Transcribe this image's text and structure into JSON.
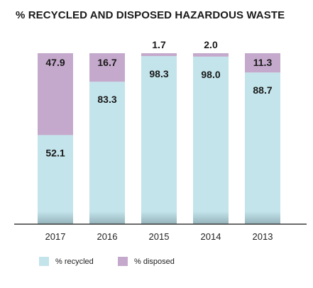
{
  "title": "% RECYCLED AND DISPOSED HAZARDOUS WASTE",
  "chart_data": {
    "type": "bar",
    "stacked": true,
    "title": "% RECYCLED AND DISPOSED HAZARDOUS WASTE",
    "categories": [
      "2017",
      "2016",
      "2015",
      "2014",
      "2013"
    ],
    "series": [
      {
        "name": "% recycled",
        "values": [
          52.1,
          83.3,
          98.3,
          98.0,
          88.7
        ],
        "color": "#c3e4eb"
      },
      {
        "name": "% disposed",
        "values": [
          47.9,
          16.7,
          1.7,
          2.0,
          11.3
        ],
        "color": "#c5a9cc"
      }
    ],
    "value_labels": {
      "recycled": [
        "52.1",
        "83.3",
        "98.3",
        "98.0",
        "88.7"
      ],
      "disposed": [
        "47.9",
        "16.7",
        "1.7",
        "2.0",
        "11.3"
      ]
    },
    "ylim": [
      0,
      100
    ],
    "grid": false,
    "legend": "bottom-left"
  },
  "legend": {
    "recycled_label": "% recycled",
    "disposed_label": "% disposed"
  },
  "colors": {
    "recycled": "#c3e4eb",
    "disposed": "#c5a9cc",
    "axis": "#3a3a3a",
    "text": "#1a1a1a"
  }
}
